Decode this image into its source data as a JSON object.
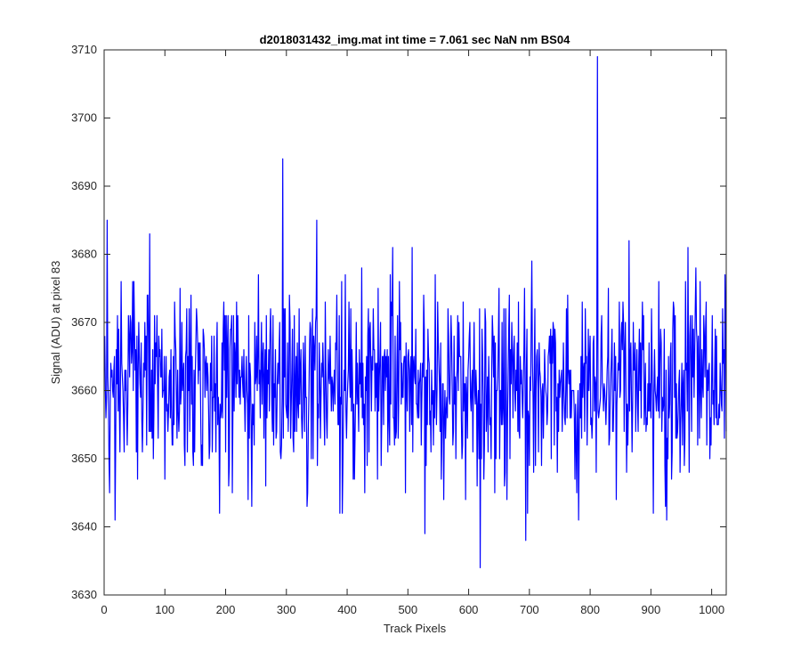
{
  "chart_data": {
    "type": "line",
    "title": "d2018031432_img.mat int time = 7.061 sec  NaN nm BS04",
    "xlabel": "Track Pixels",
    "ylabel": "Signal (ADU) at pixel 83",
    "xlim": [
      0,
      1024
    ],
    "ylim": [
      3630,
      3710
    ],
    "xticks": [
      0,
      100,
      200,
      300,
      400,
      500,
      600,
      700,
      800,
      900,
      1000
    ],
    "yticks": [
      3630,
      3640,
      3650,
      3660,
      3670,
      3680,
      3690,
      3700,
      3710
    ],
    "xtick_labels": [
      "0",
      "100",
      "200",
      "300",
      "400",
      "500",
      "600",
      "700",
      "800",
      "900",
      "1000"
    ],
    "ytick_labels": [
      "3630",
      "3640",
      "3650",
      "3660",
      "3670",
      "3680",
      "3690",
      "3700",
      "3710"
    ],
    "grid": false,
    "box": true,
    "series": [
      {
        "color": "#0000ff",
        "n_points": 1024,
        "approx_mean": 3661,
        "approx_range": [
          3634,
          3709
        ],
        "notable_points": [
          {
            "x": 1,
            "y": 3668
          },
          {
            "x": 18,
            "y": 3641
          },
          {
            "x": 294,
            "y": 3694
          },
          {
            "x": 350,
            "y": 3685
          },
          {
            "x": 388,
            "y": 3642
          },
          {
            "x": 528,
            "y": 3639
          },
          {
            "x": 619,
            "y": 3634
          },
          {
            "x": 694,
            "y": 3638
          },
          {
            "x": 812,
            "y": 3709
          },
          {
            "x": 1024,
            "y": 3654
          }
        ]
      }
    ]
  },
  "colors": {
    "line": "#0000ff",
    "axes": "#262626",
    "background": "#ffffff"
  }
}
